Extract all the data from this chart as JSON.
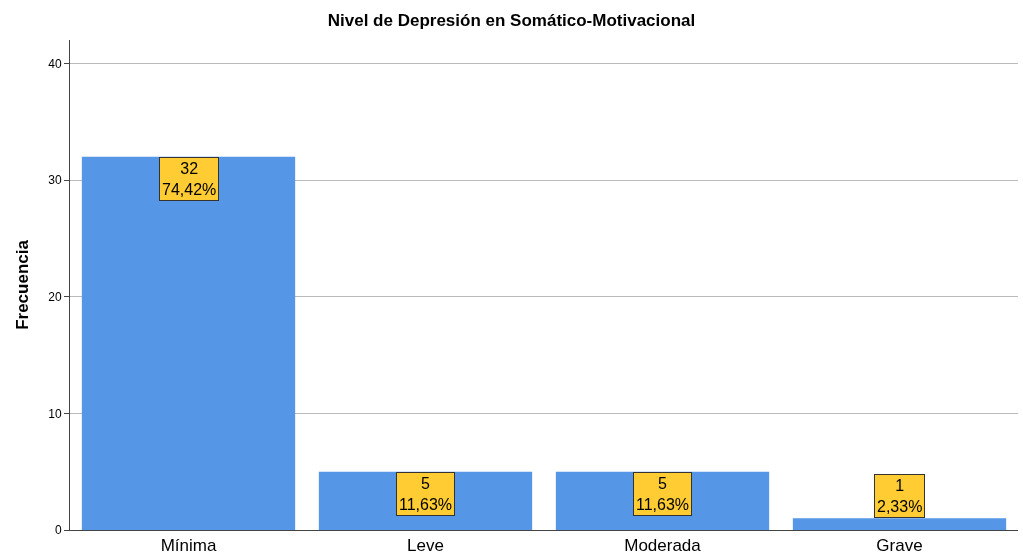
{
  "chart_data": {
    "type": "bar",
    "title": "Nivel de Depresión en Somático-Motivacional",
    "ylabel": "Frecuencia",
    "categories": [
      "Mínima",
      "Leve",
      "Moderada",
      "Grave"
    ],
    "values": [
      32,
      5,
      5,
      1
    ],
    "color": "#5596e6",
    "value_labels": [
      "32\n74,42%",
      "5\n11,63%",
      "5\n11,63%",
      "1\n2,33%"
    ],
    "ylim": [
      0,
      42
    ],
    "yticks": [
      0,
      10,
      20,
      30,
      40
    ],
    "grid": "y"
  }
}
